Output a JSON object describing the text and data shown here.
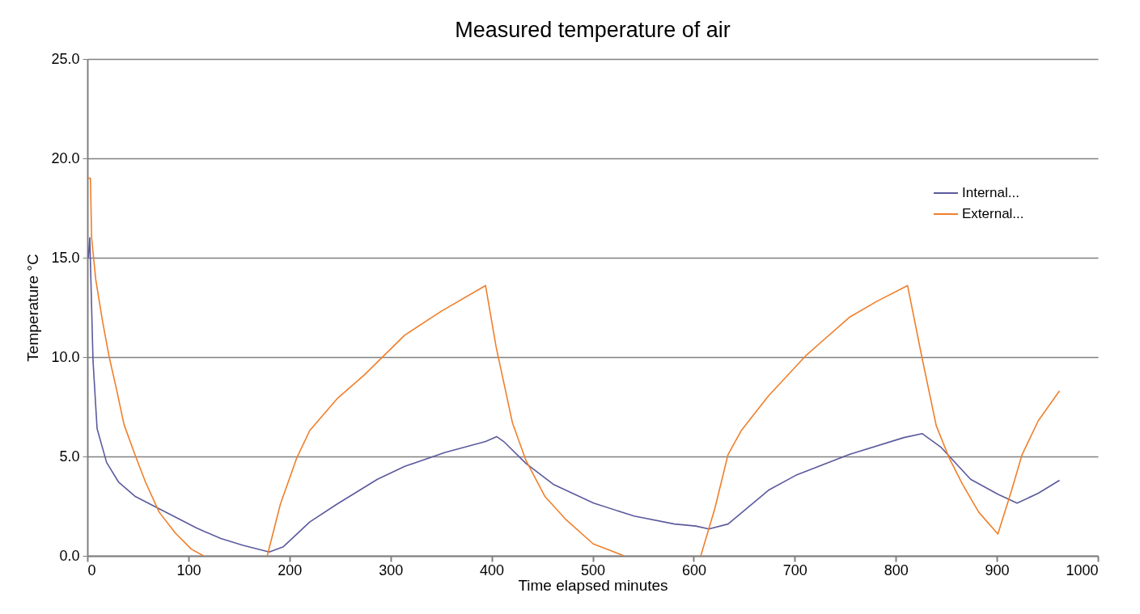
{
  "chart_data": {
    "type": "line",
    "title": "Measured temperature of air",
    "xlabel": "Time elapsed minutes",
    "ylabel": "Temperature °C",
    "xlim": [
      0,
      1000
    ],
    "xticks": [
      0,
      100,
      200,
      300,
      400,
      500,
      600,
      700,
      800,
      900,
      1000
    ],
    "ylim": [
      0,
      25
    ],
    "yticks": [
      {
        "value": 0,
        "label": "0.0"
      },
      {
        "value": 5,
        "label": "5.0"
      },
      {
        "value": 10,
        "label": "10.0"
      },
      {
        "value": 15,
        "label": "15.0"
      },
      {
        "value": 20,
        "label": "20.0"
      },
      {
        "value": 25,
        "label": "25.0"
      }
    ],
    "grid": "y",
    "legend": "top right",
    "line_style": "solid",
    "series": [
      {
        "name": "Internal...",
        "color": "#5b5a9e",
        "x": [
          1,
          2.4,
          5.6,
          9.6,
          19,
          31,
          47,
          66,
          87,
          108,
          132,
          154,
          180,
          194,
          220,
          247,
          287,
          314,
          354,
          394,
          405,
          412,
          434,
          461,
          501,
          541,
          581,
          602,
          615,
          634,
          674,
          701,
          754,
          808,
          826,
          845,
          874,
          901,
          920,
          941,
          962
        ],
        "values": [
          15,
          16,
          9.8,
          6.4,
          4.7,
          3.7,
          3,
          2.5,
          1.95,
          1.4,
          0.87,
          0.53,
          0.19,
          0.46,
          1.7,
          2.6,
          3.85,
          4.5,
          5.2,
          5.75,
          6,
          5.75,
          4.65,
          3.6,
          2.65,
          2,
          1.6,
          1.5,
          1.35,
          1.6,
          3.3,
          4.05,
          5.1,
          5.95,
          6.15,
          5.45,
          3.85,
          3.1,
          2.65,
          3.15,
          3.8
        ]
      },
      {
        "name": "External...",
        "color": "#f07f2a",
        "x": [
          1,
          3,
          4.2,
          8.3,
          15,
          21.6,
          28.3,
          36.3,
          47,
          57.6,
          71,
          87,
          103,
          115,
          146,
          178,
          191,
          207,
          220,
          247,
          274,
          314,
          350,
          394,
          404.5,
          420.6,
          434,
          452.6,
          474,
          500.6,
          531,
          568,
          607,
          621,
          634,
          647,
          674,
          711.5,
          754,
          781,
          811.6,
          826,
          840,
          853,
          866,
          882,
          901,
          914,
          925,
          941,
          962
        ],
        "values": [
          19,
          19,
          16,
          13.9,
          11.8,
          10,
          8.5,
          6.6,
          5.1,
          3.7,
          2.2,
          1.15,
          0.33,
          0,
          null,
          0,
          2.6,
          4.9,
          6.3,
          7.9,
          9.1,
          11.1,
          12.3,
          13.6,
          10.5,
          6.7,
          4.8,
          3,
          1.8,
          0.6,
          0,
          null,
          0,
          2.4,
          5.1,
          6.3,
          8.05,
          10.1,
          12,
          12.8,
          13.6,
          9.95,
          6.55,
          4.9,
          3.6,
          2.2,
          1.1,
          3.2,
          5.1,
          6.8,
          8.3
        ]
      }
    ]
  }
}
